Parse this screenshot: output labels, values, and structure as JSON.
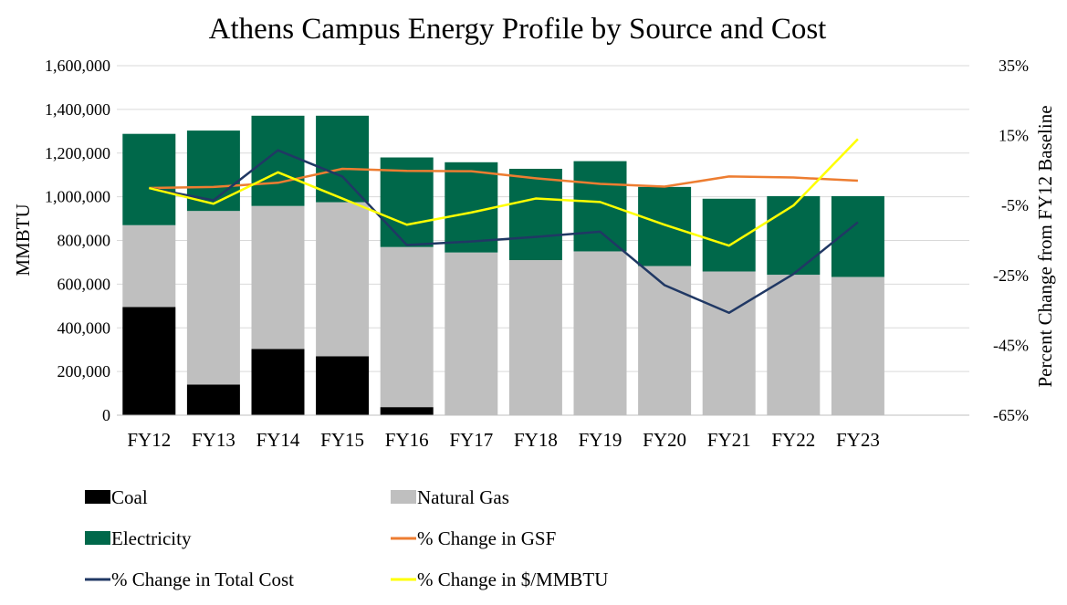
{
  "chart_data": {
    "type": "bar",
    "stacked": true,
    "title": "Athens Campus Energy Profile by Source and Cost",
    "ylabel": "MMBTU",
    "y2label": "Percent Change from FY12 Baseline",
    "ylim": [
      0,
      1600000
    ],
    "y2lim": [
      -65,
      35
    ],
    "yticks": [
      "0",
      "200,000",
      "400,000",
      "600,000",
      "800,000",
      "1,000,000",
      "1,200,000",
      "1,400,000",
      "1,600,000"
    ],
    "y2ticks": [
      "-65%",
      "-45%",
      "-25%",
      "-5%",
      "15%",
      "35%"
    ],
    "categories": [
      "FY12",
      "FY13",
      "FY14",
      "FY15",
      "FY16",
      "FY17",
      "FY18",
      "FY19",
      "FY20",
      "FY21",
      "FY22",
      "FY23"
    ],
    "bar_series": [
      {
        "name": "Coal",
        "color": "#000000",
        "values": [
          495000,
          140000,
          303000,
          270000,
          37000,
          0,
          0,
          0,
          0,
          0,
          0,
          0
        ]
      },
      {
        "name": "Natural Gas",
        "color": "#bfbfbf",
        "values": [
          375000,
          795000,
          655000,
          705000,
          733000,
          745000,
          710000,
          750000,
          683000,
          658000,
          643000,
          633000
        ]
      },
      {
        "name": "Electricity",
        "color": "#00684a",
        "values": [
          418000,
          368000,
          413000,
          396000,
          410000,
          413000,
          418000,
          413000,
          362000,
          333000,
          360000,
          370000
        ]
      }
    ],
    "line_series": [
      {
        "name": "% Change in GSF",
        "color": "#ed7d31",
        "axis": "right",
        "values": [
          0,
          0.3,
          1.5,
          5.5,
          4.9,
          4.8,
          2.8,
          1.2,
          0.4,
          3.3,
          3.0,
          2.1
        ]
      },
      {
        "name": "% Change in Total Cost",
        "color": "#203864",
        "axis": "right",
        "values": [
          0,
          -3.5,
          10.8,
          3.3,
          -16.3,
          -15.3,
          -14.0,
          -12.5,
          -27.8,
          -35.7,
          -24.6,
          -9.8
        ]
      },
      {
        "name": "% Change in $/MMBTU",
        "color": "#ffff00",
        "axis": "right",
        "values": [
          0,
          -4.5,
          4.5,
          -3.0,
          -10.5,
          -7.0,
          -3.0,
          -4.0,
          -10.5,
          -16.5,
          -5.0,
          14.0
        ]
      }
    ],
    "legend_position": "bottom"
  }
}
